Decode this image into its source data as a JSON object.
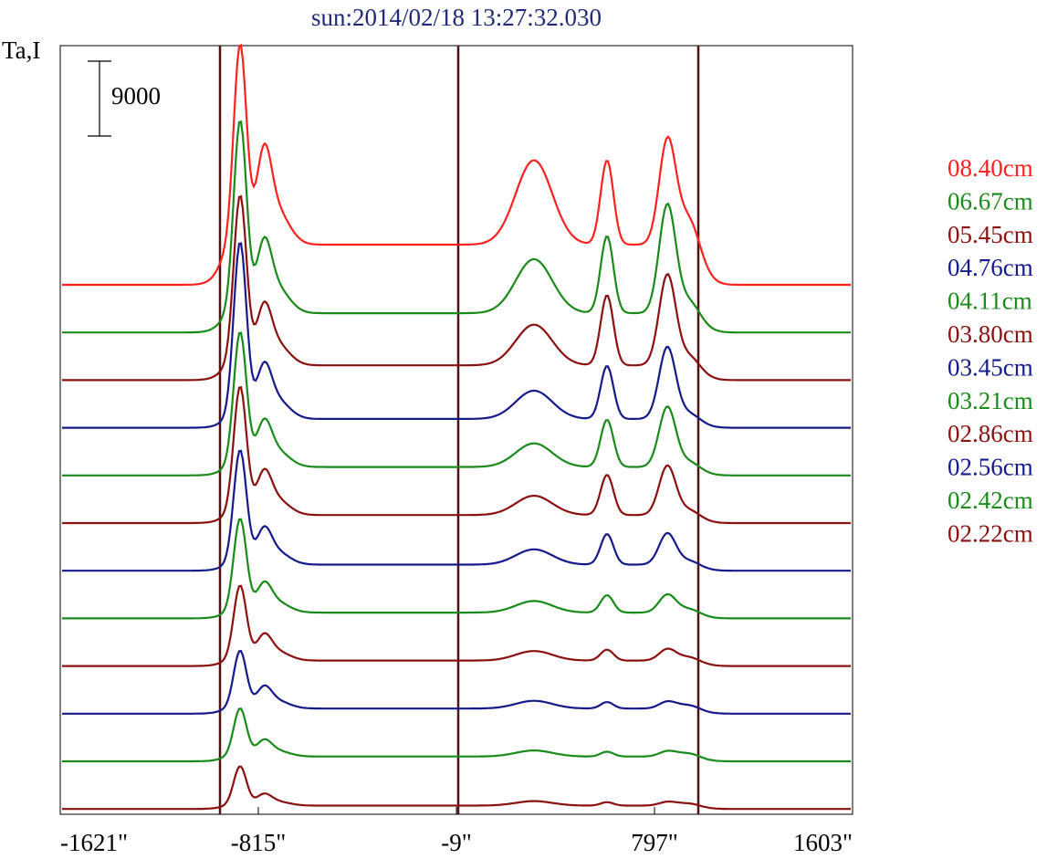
{
  "chart_data": {
    "type": "line",
    "title": "sun:2014/02/18 13:27:32.030",
    "ylabel": "Ta,I",
    "scale_bar_label": "9000",
    "xlim": [
      -1621,
      1603
    ],
    "x_ticks": [
      -1621,
      -815,
      -9,
      797,
      1603
    ],
    "x_tick_labels": [
      "-1621\"",
      "-815\"",
      "-9\"",
      "797\"",
      "1603\""
    ],
    "vertical_markers": [
      -1621,
      -9,
      1603
    ],
    "series": [
      {
        "name": "08.40cm",
        "color": "#ff2020",
        "baseline": 0,
        "peak_left": 1.0,
        "shoulder_left": 0.7,
        "plateau": 0.2,
        "peak_mid": 0.42,
        "peak_r1": 0.42,
        "peak_r2": 0.5
      },
      {
        "name": "06.67cm",
        "color": "#1a8a1a",
        "baseline": 1,
        "peak_left": 1.0,
        "shoulder_left": 0.55,
        "plateau": 0.1,
        "peak_mid": 0.28,
        "peak_r1": 0.4,
        "peak_r2": 0.55
      },
      {
        "name": "05.45cm",
        "color": "#8b1010",
        "baseline": 2,
        "peak_left": 0.92,
        "shoulder_left": 0.48,
        "plateau": 0.08,
        "peak_mid": 0.22,
        "peak_r1": 0.38,
        "peak_r2": 0.48
      },
      {
        "name": "04.76cm",
        "color": "#151a8a",
        "baseline": 3,
        "peak_left": 1.0,
        "shoulder_left": 0.45,
        "plateau": 0.05,
        "peak_mid": 0.16,
        "peak_r1": 0.3,
        "peak_r2": 0.4
      },
      {
        "name": "04.11cm",
        "color": "#1a8a1a",
        "baseline": 4,
        "peak_left": 0.8,
        "shoulder_left": 0.4,
        "plateau": 0.05,
        "peak_mid": 0.14,
        "peak_r1": 0.28,
        "peak_r2": 0.35
      },
      {
        "name": "03.80cm",
        "color": "#8b1010",
        "baseline": 5,
        "peak_left": 0.8,
        "shoulder_left": 0.4,
        "plateau": 0.05,
        "peak_mid": 0.12,
        "peak_r1": 0.25,
        "peak_r2": 0.3
      },
      {
        "name": "03.45cm",
        "color": "#151a8a",
        "baseline": 6,
        "peak_left": 0.75,
        "shoulder_left": 0.35,
        "plateau": 0.04,
        "peak_mid": 0.1,
        "peak_r1": 0.2,
        "peak_r2": 0.2
      },
      {
        "name": "03.21cm",
        "color": "#1a8a1a",
        "baseline": 7,
        "peak_left": 0.65,
        "shoulder_left": 0.3,
        "plateau": 0.04,
        "peak_mid": 0.08,
        "peak_r1": 0.12,
        "peak_r2": 0.12
      },
      {
        "name": "02.86cm",
        "color": "#8b1010",
        "baseline": 8,
        "peak_left": 0.55,
        "shoulder_left": 0.28,
        "plateau": 0.04,
        "peak_mid": 0.07,
        "peak_r1": 0.08,
        "peak_r2": 0.08
      },
      {
        "name": "02.56cm",
        "color": "#151a8a",
        "baseline": 9,
        "peak_left": 0.45,
        "shoulder_left": 0.25,
        "plateau": 0.04,
        "peak_mid": 0.06,
        "peak_r1": 0.05,
        "peak_r2": 0.05
      },
      {
        "name": "02.42cm",
        "color": "#1a8a1a",
        "baseline": 10,
        "peak_left": 0.4,
        "shoulder_left": 0.2,
        "plateau": 0.04,
        "peak_mid": 0.05,
        "peak_r1": 0.04,
        "peak_r2": 0.04
      },
      {
        "name": "02.22cm",
        "color": "#8b1010",
        "baseline": 11,
        "peak_left": 0.35,
        "shoulder_left": 0.15,
        "plateau": 0.03,
        "peak_mid": 0.04,
        "peak_r1": 0.03,
        "peak_r2": 0.03
      }
    ]
  }
}
